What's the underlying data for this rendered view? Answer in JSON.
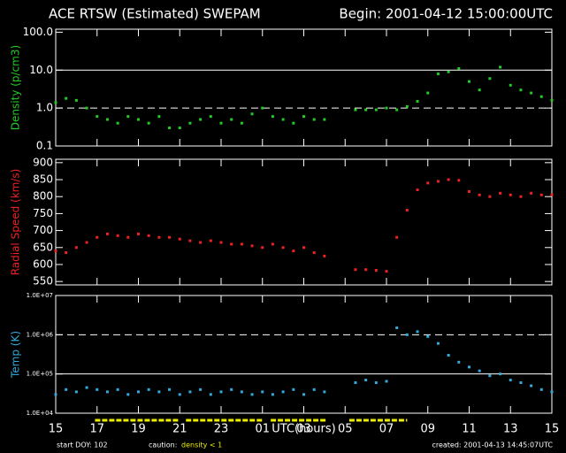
{
  "header": {
    "title": "ACE RTSW (Estimated) SWEPAM",
    "begin": "Begin: 2001-04-12 15:00:00UTC"
  },
  "footer": {
    "start": "start DOY: 102",
    "caution": "caution:",
    "caution_text": "density < 1",
    "created": "created: 2001-04-13 14:45:07UTC"
  },
  "chart_data": [
    {
      "type": "scatter",
      "ylabel": "Density (p/cm3)",
      "log_y": true,
      "color": "#22cc22",
      "xlim": [
        0,
        24
      ],
      "xticks": [
        0,
        2,
        4,
        6,
        8,
        10,
        12,
        14,
        16,
        18,
        20,
        22,
        24
      ],
      "ylim": [
        0.1,
        120
      ],
      "yticks": [
        {
          "value": 100,
          "label": "100.0"
        },
        {
          "value": 10,
          "label": "10.0"
        },
        {
          "value": 1,
          "label": "1.0"
        },
        0.1
      ],
      "ref_lines": [
        {
          "value": 10,
          "style": "solid"
        },
        {
          "value": 1,
          "style": "dashed"
        }
      ],
      "x": [
        0,
        0.5,
        1,
        1.5,
        2,
        2.5,
        3,
        3.5,
        4,
        4.5,
        5,
        5.5,
        6,
        6.5,
        7,
        7.5,
        8,
        8.5,
        9,
        9.5,
        10,
        10.5,
        11,
        11.5,
        12,
        12.5,
        13,
        13.5,
        14,
        14.5,
        15,
        15.5,
        16,
        16.5,
        17,
        17.5,
        18,
        18.5,
        19,
        19.5,
        20,
        20.5,
        21,
        21.5,
        22,
        22.5,
        23,
        23.5,
        24
      ],
      "values": [
        1.4,
        1.8,
        1.6,
        1.0,
        0.6,
        0.5,
        0.4,
        0.6,
        0.5,
        0.4,
        0.6,
        0.3,
        0.3,
        0.4,
        0.5,
        0.6,
        0.4,
        0.5,
        0.4,
        0.7,
        1.0,
        0.6,
        0.5,
        0.4,
        0.6,
        0.5,
        0.5,
        null,
        null,
        0.9,
        0.9,
        0.9,
        1.0,
        0.9,
        1.1,
        1.5,
        2.5,
        8,
        9,
        11,
        5,
        3,
        6,
        12,
        4,
        3,
        2.5,
        2,
        1.6
      ]
    },
    {
      "type": "scatter",
      "ylabel": "Radial Speed (km/s)",
      "log_y": false,
      "color": "#ee2222",
      "xlim": [
        0,
        24
      ],
      "xticks": [
        0,
        2,
        4,
        6,
        8,
        10,
        12,
        14,
        16,
        18,
        20,
        22,
        24
      ],
      "ylim": [
        540,
        910
      ],
      "yticks": [
        550,
        600,
        650,
        700,
        750,
        800,
        850,
        900
      ],
      "x": [
        0,
        0.5,
        1,
        1.5,
        2,
        2.5,
        3,
        3.5,
        4,
        4.5,
        5,
        5.5,
        6,
        6.5,
        7,
        7.5,
        8,
        8.5,
        9,
        9.5,
        10,
        10.5,
        11,
        11.5,
        12,
        12.5,
        13,
        13.5,
        14,
        14.5,
        15,
        15.5,
        16,
        16.5,
        17,
        17.5,
        18,
        18.5,
        19,
        19.5,
        20,
        20.5,
        21,
        21.5,
        22,
        22.5,
        23,
        23.5,
        24
      ],
      "values": [
        640,
        635,
        650,
        665,
        680,
        690,
        685,
        680,
        690,
        685,
        680,
        680,
        675,
        670,
        665,
        670,
        665,
        660,
        660,
        655,
        650,
        660,
        650,
        640,
        650,
        635,
        625,
        null,
        null,
        585,
        585,
        583,
        580,
        680,
        760,
        820,
        840,
        845,
        850,
        848,
        815,
        805,
        800,
        810,
        805,
        800,
        810,
        805,
        805
      ]
    },
    {
      "type": "scatter",
      "ylabel": "Temp (K)",
      "log_y": true,
      "color": "#33aadd",
      "xlabel": "UTC(hours)",
      "xlim": [
        0,
        24
      ],
      "xticks": [
        {
          "value": 0,
          "label": "15"
        },
        {
          "value": 2,
          "label": "17"
        },
        {
          "value": 4,
          "label": "19"
        },
        {
          "value": 6,
          "label": "21"
        },
        {
          "value": 8,
          "label": "23"
        },
        {
          "value": 10,
          "label": "01"
        },
        {
          "value": 12,
          "label": "03"
        },
        {
          "value": 14,
          "label": "05"
        },
        {
          "value": 16,
          "label": "07"
        },
        {
          "value": 18,
          "label": "09"
        },
        {
          "value": 20,
          "label": "11"
        },
        {
          "value": 22,
          "label": "13"
        },
        {
          "value": 24,
          "label": "15"
        }
      ],
      "ylim": [
        10000,
        10000000
      ],
      "yticks": [
        {
          "value": 10000000,
          "label": "1.0E+07"
        },
        {
          "value": 1000000,
          "label": "1.0E+06"
        },
        {
          "value": 100000,
          "label": "1.0E+05"
        },
        {
          "value": 10000,
          "label": "1.0E+04"
        }
      ],
      "ref_lines": [
        {
          "value": 1000000,
          "style": "dashed"
        },
        {
          "value": 100000,
          "style": "solid"
        }
      ],
      "caution_color": "#eeee00",
      "caution_intervals": [
        [
          1.9,
          6.0
        ],
        [
          6.3,
          10.0
        ],
        [
          10.4,
          13.1
        ],
        [
          14.2,
          17.0
        ]
      ],
      "x": [
        0,
        0.5,
        1,
        1.5,
        2,
        2.5,
        3,
        3.5,
        4,
        4.5,
        5,
        5.5,
        6,
        6.5,
        7,
        7.5,
        8,
        8.5,
        9,
        9.5,
        10,
        10.5,
        11,
        11.5,
        12,
        12.5,
        13,
        13.5,
        14,
        14.5,
        15,
        15.5,
        16,
        16.5,
        17,
        17.5,
        18,
        18.5,
        19,
        19.5,
        20,
        20.5,
        21,
        21.5,
        22,
        22.5,
        23,
        23.5,
        24
      ],
      "values": [
        30000,
        40000,
        35000,
        45000,
        40000,
        35000,
        40000,
        30000,
        35000,
        40000,
        35000,
        40000,
        30000,
        35000,
        40000,
        30000,
        35000,
        40000,
        35000,
        30000,
        35000,
        30000,
        35000,
        40000,
        30000,
        40000,
        35000,
        null,
        null,
        60000,
        70000,
        60000,
        65000,
        1500000,
        1000000,
        1200000,
        900000,
        600000,
        300000,
        200000,
        150000,
        120000,
        90000,
        100000,
        70000,
        60000,
        50000,
        40000,
        35000
      ]
    }
  ]
}
